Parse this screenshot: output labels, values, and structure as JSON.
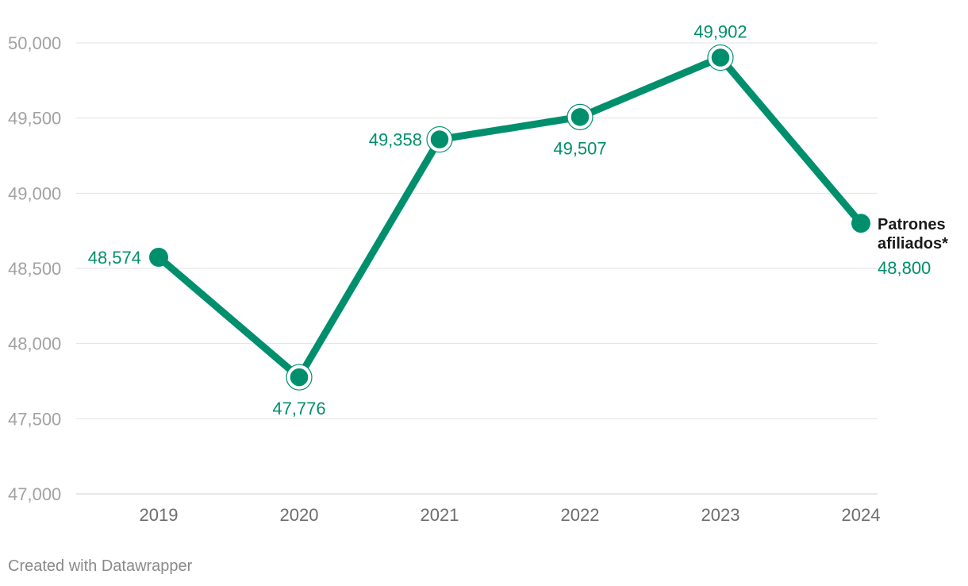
{
  "chart_data": {
    "type": "line",
    "title": "",
    "xlabel": "",
    "ylabel": "",
    "categories": [
      "2019",
      "2020",
      "2021",
      "2022",
      "2023",
      "2024"
    ],
    "series": [
      {
        "name": "Patrones afiliados*",
        "name_lines": [
          "Patrones",
          "afiliados*"
        ],
        "values": [
          48574,
          47776,
          49358,
          49507,
          49902,
          48800
        ],
        "value_labels": [
          "48,574",
          "47,776",
          "49,358",
          "49,507",
          "49,902",
          "48,800"
        ],
        "color": "#008f6d"
      }
    ],
    "ylim": [
      47000,
      50000
    ],
    "yticks": [
      47000,
      47500,
      48000,
      48500,
      49000,
      49500,
      50000
    ],
    "ytick_labels": [
      "47,000",
      "47,500",
      "48,000",
      "48,500",
      "49,000",
      "49,500",
      "50,000"
    ],
    "grid": true,
    "legend": "end-of-line label"
  },
  "credit": "Created with Datawrapper"
}
